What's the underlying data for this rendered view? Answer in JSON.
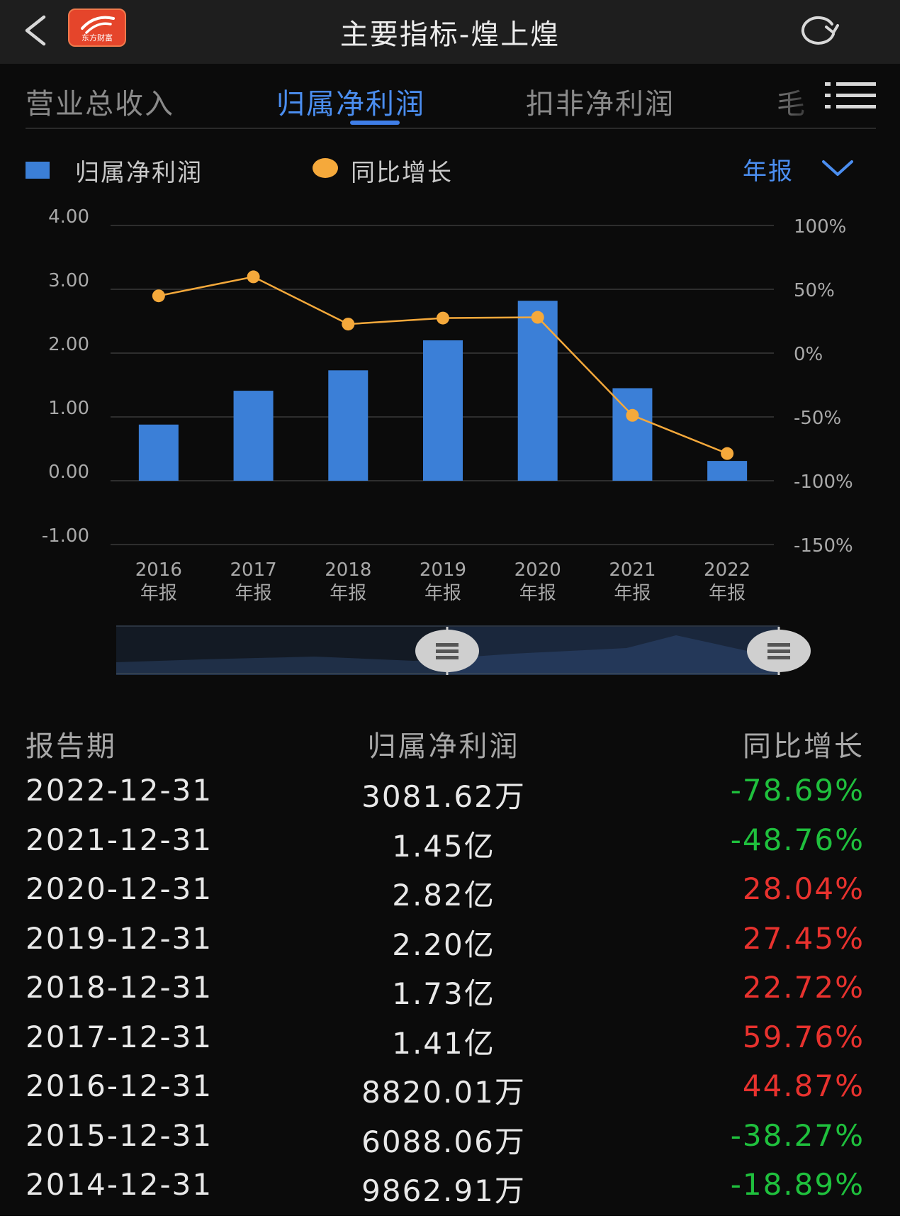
{
  "header": {
    "title": "主要指标-煌上煌",
    "logo_text": "东方财富"
  },
  "tabs": [
    {
      "label": "营业总收入",
      "active": false
    },
    {
      "label": "归属净利润",
      "active": true
    },
    {
      "label": "扣非净利润",
      "active": false
    },
    {
      "label": "毛",
      "active": false
    }
  ],
  "legend": {
    "bar_label": "归属净利润",
    "line_label": "同比增长",
    "bar_color": "#3b7fd7",
    "line_color": "#f5a93b"
  },
  "period_select": "年报",
  "chart_data": {
    "type": "bar+line",
    "categories": [
      "2016\n年报",
      "2017\n年报",
      "2018\n年报",
      "2019\n年报",
      "2020\n年报",
      "2021\n年报",
      "2022\n年报"
    ],
    "x_years": [
      "2016",
      "2017",
      "2018",
      "2019",
      "2020",
      "2021",
      "2022"
    ],
    "x_sub": "年报",
    "series": [
      {
        "name": "归属净利润",
        "type": "bar",
        "axis": "left",
        "values": [
          0.88,
          1.41,
          1.73,
          2.2,
          2.82,
          1.45,
          0.31
        ]
      },
      {
        "name": "同比增长",
        "type": "line",
        "axis": "right",
        "values": [
          44.87,
          59.76,
          22.72,
          27.45,
          28.04,
          -48.76,
          -78.69
        ]
      }
    ],
    "y_left": {
      "ticks": [
        "4.00",
        "3.00",
        "2.00",
        "1.00",
        "0.00",
        "-1.00"
      ],
      "range": [
        -1,
        4
      ]
    },
    "y_right": {
      "ticks": [
        "100%",
        "50%",
        "0%",
        "-50%",
        "-100%",
        "-150%"
      ],
      "range": [
        -150,
        100
      ]
    },
    "grid": true
  },
  "table": {
    "headers": [
      "报告期",
      "归属净利润",
      "同比增长"
    ],
    "rows": [
      {
        "date": "2022-12-31",
        "value": "3081.62万",
        "change": "-78.69%",
        "direction": "down"
      },
      {
        "date": "2021-12-31",
        "value": "1.45亿",
        "change": "-48.76%",
        "direction": "down"
      },
      {
        "date": "2020-12-31",
        "value": "2.82亿",
        "change": "28.04%",
        "direction": "up"
      },
      {
        "date": "2019-12-31",
        "value": "2.20亿",
        "change": "27.45%",
        "direction": "up"
      },
      {
        "date": "2018-12-31",
        "value": "1.73亿",
        "change": "22.72%",
        "direction": "up"
      },
      {
        "date": "2017-12-31",
        "value": "1.41亿",
        "change": "59.76%",
        "direction": "up"
      },
      {
        "date": "2016-12-31",
        "value": "8820.01万",
        "change": "44.87%",
        "direction": "up"
      },
      {
        "date": "2015-12-31",
        "value": "6088.06万",
        "change": "-38.27%",
        "direction": "down"
      },
      {
        "date": "2014-12-31",
        "value": "9862.91万",
        "change": "-18.89%",
        "direction": "down"
      }
    ]
  },
  "colors": {
    "up": "#e8322e",
    "down": "#1fc03d",
    "accent": "#4b8ef0"
  }
}
